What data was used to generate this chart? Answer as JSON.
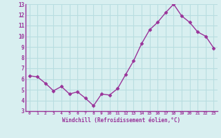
{
  "x": [
    0,
    1,
    2,
    3,
    4,
    5,
    6,
    7,
    8,
    9,
    10,
    11,
    12,
    13,
    14,
    15,
    16,
    17,
    18,
    19,
    20,
    21,
    22,
    23
  ],
  "y": [
    6.3,
    6.2,
    5.6,
    4.9,
    5.3,
    4.6,
    4.8,
    4.2,
    3.5,
    4.6,
    4.5,
    5.1,
    6.4,
    7.7,
    9.3,
    10.6,
    11.3,
    12.2,
    13.0,
    11.9,
    11.3,
    10.4,
    10.0,
    8.9
  ],
  "line_color": "#993399",
  "marker": "D",
  "marker_size": 2.5,
  "xlabel": "Windchill (Refroidissement éolien,°C)",
  "xlim": [
    -0.5,
    23.5
  ],
  "ylim": [
    3,
    13
  ],
  "yticks": [
    3,
    4,
    5,
    6,
    7,
    8,
    9,
    10,
    11,
    12,
    13
  ],
  "xticks": [
    0,
    1,
    2,
    3,
    4,
    5,
    6,
    7,
    8,
    9,
    10,
    11,
    12,
    13,
    14,
    15,
    16,
    17,
    18,
    19,
    20,
    21,
    22,
    23
  ],
  "background_color": "#d8eff0",
  "grid_color": "#b8dde0",
  "tick_color": "#993399",
  "label_color": "#993399",
  "spine_color": "#993399"
}
